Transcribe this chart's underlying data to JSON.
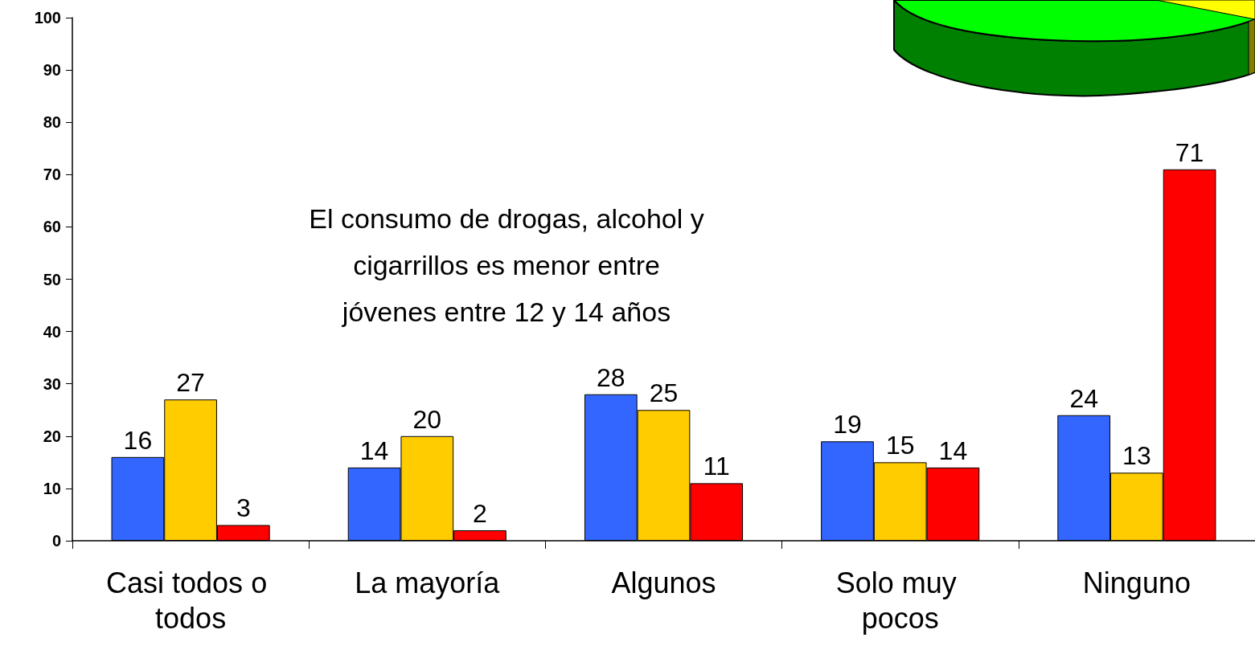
{
  "chart_data": {
    "type": "bar",
    "categories": [
      "Casi todos o todos",
      "La mayoría",
      "Algunos",
      "Solo muy pocos",
      "Ninguno"
    ],
    "series": [
      {
        "color": "#3366ff",
        "values": [
          16,
          14,
          28,
          19,
          24
        ]
      },
      {
        "color": "#ffcc00",
        "values": [
          27,
          20,
          25,
          15,
          13
        ]
      },
      {
        "color": "#ff0000",
        "values": [
          3,
          2,
          11,
          14,
          71
        ]
      }
    ],
    "ylim": [
      0,
      100
    ],
    "yticks": [
      0,
      10,
      20,
      30,
      40,
      50,
      60,
      70,
      80,
      90,
      100
    ],
    "grid": false,
    "data_labels": true,
    "annotations": [
      "El consumo de drogas, alcohol y\ncigarrillos es menor entre\njóvenes entre 12 y 14 años"
    ]
  }
}
